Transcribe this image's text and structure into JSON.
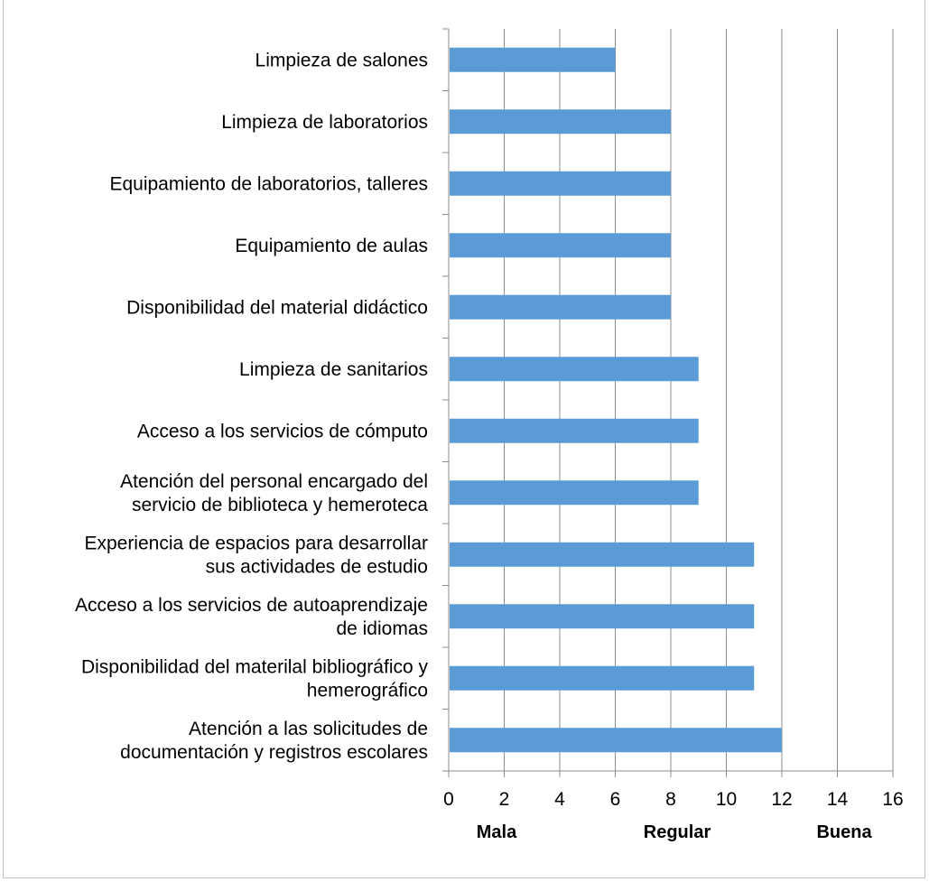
{
  "chart_data": {
    "type": "bar",
    "orientation": "horizontal",
    "categories": [
      [
        "Limpieza de salones"
      ],
      [
        "Limpieza de laboratorios"
      ],
      [
        "Equipamiento de laboratorios, talleres"
      ],
      [
        "Equipamiento de aulas"
      ],
      [
        "Disponibilidad del material didáctico"
      ],
      [
        "Limpieza de sanitarios"
      ],
      [
        "Acceso a los servicios de cómputo"
      ],
      [
        "Atención del personal encargado del",
        "servicio de biblioteca y hemeroteca"
      ],
      [
        "Experiencia de espacios para desarrollar",
        "sus actividades de estudio"
      ],
      [
        "Acceso a los servicios de autoaprendizaje",
        "de idiomas"
      ],
      [
        "Disponibilidad del materilal bibliográfico y",
        "hemerográfico"
      ],
      [
        "Atención a las solicitudes de",
        "documentación y registros escolares"
      ]
    ],
    "values": [
      6,
      8,
      8,
      8,
      8,
      9,
      9,
      9,
      11,
      11,
      11,
      12
    ],
    "xlim": [
      0,
      16
    ],
    "xticks": [
      "0",
      "2",
      "4",
      "6",
      "8",
      "10",
      "12",
      "14",
      "16"
    ],
    "band_labels": [
      "Mala",
      "Regular",
      "Buena"
    ],
    "bar_color": "#5b9bd5",
    "grid": "vertical",
    "legend": "none"
  }
}
